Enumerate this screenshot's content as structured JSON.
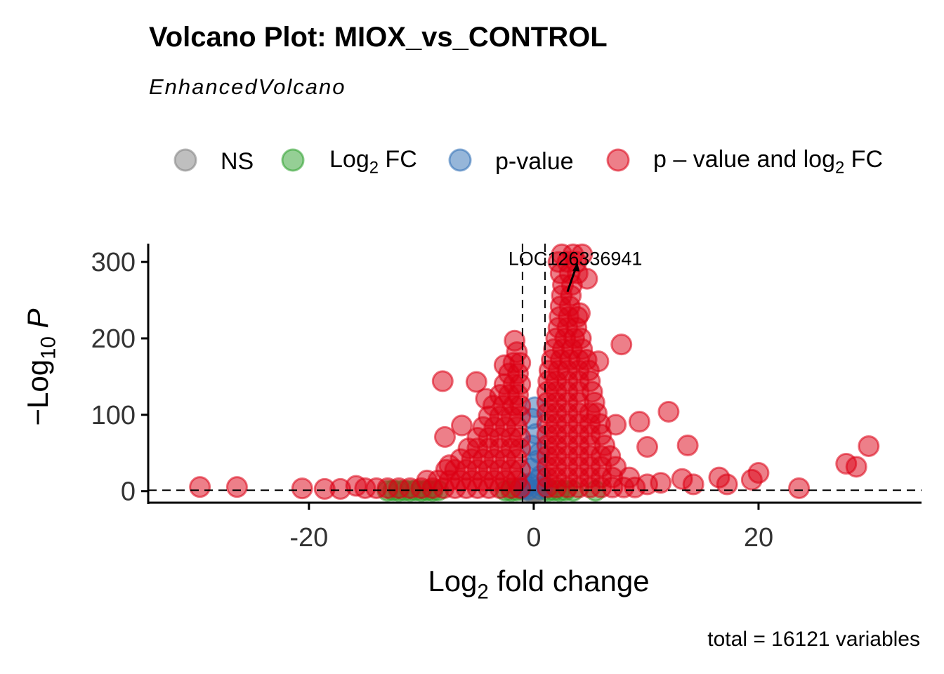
{
  "chart_data": {
    "type": "scatter",
    "title": "Volcano Plot: MIOX_vs_CONTROL",
    "subtitle": "EnhancedVolcano",
    "xlabel": {
      "main": "Log",
      "sub": "2",
      "rest": " fold change"
    },
    "ylabel": {
      "main": "−Log",
      "sub": "10",
      "rest": " P"
    },
    "caption": "total = 16121 variables",
    "xlim": [
      -34.3,
      34.5
    ],
    "ylim": [
      -15,
      324
    ],
    "x_ticks": [
      -20,
      0,
      20
    ],
    "y_ticks": [
      0,
      100,
      200,
      300
    ],
    "fc_cutoff": [
      -1,
      1
    ],
    "p_cutoff_neglog10": 1.3,
    "grid": false,
    "legend_position": "top",
    "legend": [
      {
        "key": "ns",
        "label": "NS",
        "color": "#808080"
      },
      {
        "key": "fc",
        "label_main": "Log",
        "label_sub": "2",
        "label_rest": " FC",
        "color": "#2CA02C"
      },
      {
        "key": "p",
        "label": "p-value",
        "color": "#2E6DB4"
      },
      {
        "key": "both",
        "label_main": "p – value and log",
        "label_sub": "2",
        "label_rest": " FC",
        "color": "#DC0014"
      }
    ],
    "annotation": {
      "label": "LOC126336941",
      "point": [
        3.0,
        261
      ],
      "label_pos": [
        3.7,
        305
      ]
    },
    "series": {
      "ns": [
        [
          -0.8,
          0.3
        ],
        [
          -0.4,
          0.6
        ],
        [
          0,
          0.2
        ],
        [
          0.4,
          0.8
        ],
        [
          0.8,
          0.4
        ],
        [
          -0.2,
          1
        ],
        [
          0.2,
          0.1
        ],
        [
          0,
          -3
        ]
      ],
      "fc": [
        [
          -13,
          0.6
        ],
        [
          -12.5,
          0.9
        ],
        [
          -12,
          0.4
        ],
        [
          -11.5,
          0.8
        ],
        [
          -11,
          0.5
        ],
        [
          -10.5,
          1
        ],
        [
          -10,
          0.3
        ],
        [
          -9.5,
          0.8
        ],
        [
          -9,
          0.5
        ],
        [
          -8.5,
          0.9
        ],
        [
          -2.5,
          0.7
        ],
        [
          -2,
          0.4
        ],
        [
          -1.5,
          0.9
        ],
        [
          1.3,
          0.5
        ],
        [
          1.8,
          0.9
        ],
        [
          2.3,
          0.4
        ],
        [
          2.8,
          0.8
        ],
        [
          3.5,
          0.5
        ],
        [
          5.5,
          0.6
        ]
      ],
      "p": [
        [
          -0.5,
          2
        ],
        [
          0.5,
          3
        ],
        [
          -0.4,
          10
        ],
        [
          0.4,
          15
        ],
        [
          -0.3,
          30
        ],
        [
          0.3,
          40
        ],
        [
          -0.2,
          60
        ],
        [
          0.2,
          75
        ],
        [
          -0.15,
          95
        ],
        [
          0.6,
          20
        ],
        [
          -0.7,
          8
        ],
        [
          0.1,
          110
        ],
        [
          -0.8,
          4
        ],
        [
          0.8,
          6
        ],
        [
          0.5,
          50
        ]
      ],
      "both": [
        [
          1.2,
          5
        ],
        [
          2,
          5
        ],
        [
          3,
          5
        ],
        [
          4,
          5
        ],
        [
          5,
          5
        ],
        [
          6,
          5
        ],
        [
          7,
          5
        ],
        [
          8,
          5
        ],
        [
          9,
          5
        ],
        [
          1.2,
          18
        ],
        [
          2,
          18
        ],
        [
          3,
          18
        ],
        [
          4,
          18
        ],
        [
          5,
          18
        ],
        [
          6,
          18
        ],
        [
          7,
          18
        ],
        [
          8.5,
          18
        ],
        [
          1.2,
          32
        ],
        [
          2,
          32
        ],
        [
          3,
          32
        ],
        [
          4,
          32
        ],
        [
          5,
          32
        ],
        [
          6,
          32
        ],
        [
          7.3,
          32
        ],
        [
          1.2,
          46
        ],
        [
          2,
          46
        ],
        [
          3,
          46
        ],
        [
          4,
          46
        ],
        [
          5,
          46
        ],
        [
          6,
          46
        ],
        [
          6.8,
          46
        ],
        [
          1.2,
          60
        ],
        [
          2,
          60
        ],
        [
          3,
          60
        ],
        [
          4,
          60
        ],
        [
          5,
          60
        ],
        [
          6.3,
          60
        ],
        [
          1.2,
          74
        ],
        [
          2,
          74
        ],
        [
          3,
          74
        ],
        [
          4,
          74
        ],
        [
          5,
          74
        ],
        [
          6,
          74
        ],
        [
          1.2,
          88
        ],
        [
          2,
          88
        ],
        [
          3,
          88
        ],
        [
          4,
          88
        ],
        [
          5,
          88
        ],
        [
          5.9,
          88
        ],
        [
          1.2,
          102
        ],
        [
          2,
          102
        ],
        [
          3,
          102
        ],
        [
          4,
          102
        ],
        [
          5,
          102
        ],
        [
          5.6,
          102
        ],
        [
          1.2,
          116
        ],
        [
          2,
          116
        ],
        [
          3,
          116
        ],
        [
          4,
          116
        ],
        [
          5.4,
          116
        ],
        [
          1.2,
          130
        ],
        [
          2,
          130
        ],
        [
          3,
          130
        ],
        [
          4,
          130
        ],
        [
          5.2,
          130
        ],
        [
          1.3,
          144
        ],
        [
          2,
          144
        ],
        [
          3,
          144
        ],
        [
          4,
          144
        ],
        [
          5,
          144
        ],
        [
          1.4,
          158
        ],
        [
          2.2,
          158
        ],
        [
          3,
          158
        ],
        [
          4,
          158
        ],
        [
          4.9,
          158
        ],
        [
          1.6,
          172
        ],
        [
          2.4,
          172
        ],
        [
          3.2,
          172
        ],
        [
          4,
          172
        ],
        [
          4.7,
          172
        ],
        [
          1.8,
          186
        ],
        [
          2.6,
          186
        ],
        [
          3.4,
          186
        ],
        [
          4.3,
          186
        ],
        [
          2,
          200
        ],
        [
          2.8,
          200
        ],
        [
          3.6,
          200
        ],
        [
          4.2,
          200
        ],
        [
          2.2,
          214
        ],
        [
          3,
          214
        ],
        [
          3.8,
          214
        ],
        [
          2.3,
          228
        ],
        [
          3.1,
          228
        ],
        [
          3.9,
          228
        ],
        [
          2.4,
          242
        ],
        [
          3.2,
          242
        ],
        [
          2.5,
          256
        ],
        [
          3.3,
          256
        ],
        [
          2.6,
          270
        ],
        [
          3.4,
          270
        ],
        [
          2.4,
          285
        ],
        [
          3.2,
          285
        ],
        [
          3.9,
          285
        ],
        [
          2.2,
          300
        ],
        [
          3,
          300
        ],
        [
          3.8,
          300
        ],
        [
          2.5,
          310
        ],
        [
          3.5,
          310
        ],
        [
          4.3,
          310
        ],
        [
          -15,
          4
        ],
        [
          -14,
          4
        ],
        [
          -13,
          4
        ],
        [
          -12,
          4
        ],
        [
          -11,
          4
        ],
        [
          -10,
          4
        ],
        [
          -9,
          4
        ],
        [
          -8,
          4
        ],
        [
          -7,
          4
        ],
        [
          -6,
          4
        ],
        [
          -5,
          4
        ],
        [
          -4,
          4
        ],
        [
          -3,
          4
        ],
        [
          -2,
          4
        ],
        [
          -1.2,
          4
        ],
        [
          -9.5,
          14
        ],
        [
          -8.5,
          14
        ],
        [
          -7.5,
          14
        ],
        [
          -6.5,
          14
        ],
        [
          -5.5,
          14
        ],
        [
          -4.5,
          14
        ],
        [
          -3.5,
          14
        ],
        [
          -2.5,
          14
        ],
        [
          -1.5,
          14
        ],
        [
          -7.8,
          28
        ],
        [
          -7,
          28
        ],
        [
          -6,
          28
        ],
        [
          -5,
          28
        ],
        [
          -4,
          28
        ],
        [
          -3,
          28
        ],
        [
          -2,
          28
        ],
        [
          -1.2,
          28
        ],
        [
          -6.5,
          42
        ],
        [
          -5.5,
          42
        ],
        [
          -4.5,
          42
        ],
        [
          -3.5,
          42
        ],
        [
          -2.5,
          42
        ],
        [
          -1.5,
          42
        ],
        [
          -5.8,
          56
        ],
        [
          -5,
          56
        ],
        [
          -4,
          56
        ],
        [
          -3,
          56
        ],
        [
          -2,
          56
        ],
        [
          -1.2,
          56
        ],
        [
          -5,
          70
        ],
        [
          -4,
          70
        ],
        [
          -3,
          70
        ],
        [
          -2,
          70
        ],
        [
          -1.2,
          70
        ],
        [
          -4.5,
          84
        ],
        [
          -3.5,
          84
        ],
        [
          -2.5,
          84
        ],
        [
          -1.5,
          84
        ],
        [
          -4,
          98
        ],
        [
          -3,
          98
        ],
        [
          -2,
          98
        ],
        [
          -1.2,
          98
        ],
        [
          -3.6,
          112
        ],
        [
          -2.7,
          112
        ],
        [
          -1.8,
          112
        ],
        [
          -1.2,
          112
        ],
        [
          -3,
          126
        ],
        [
          -2.2,
          126
        ],
        [
          -1.4,
          126
        ],
        [
          -2.6,
          140
        ],
        [
          -1.8,
          140
        ],
        [
          -1.2,
          140
        ],
        [
          -2.2,
          154
        ],
        [
          -1.4,
          154
        ],
        [
          -1.8,
          168
        ],
        [
          -1.2,
          168
        ],
        [
          -1.5,
          182
        ],
        [
          -29.7,
          5.5
        ],
        [
          -26.4,
          5.5
        ],
        [
          -20.6,
          3.7
        ],
        [
          -18.6,
          3
        ],
        [
          -17.2,
          3
        ],
        [
          -15.8,
          7
        ],
        [
          -8.1,
          144
        ],
        [
          -5.1,
          143
        ],
        [
          -4.25,
          121
        ],
        [
          -6.4,
          86
        ],
        [
          -7.9,
          71
        ],
        [
          -7.5,
          34
        ],
        [
          -2.6,
          165
        ],
        [
          -1.7,
          197
        ],
        [
          7.8,
          192
        ],
        [
          4.75,
          278
        ],
        [
          4.1,
          233
        ],
        [
          5.75,
          170
        ],
        [
          7.3,
          87
        ],
        [
          9.4,
          91
        ],
        [
          12,
          104
        ],
        [
          10.1,
          58
        ],
        [
          13.7,
          60
        ],
        [
          13.2,
          16
        ],
        [
          14.2,
          9
        ],
        [
          16.5,
          18
        ],
        [
          17.2,
          9
        ],
        [
          20,
          24
        ],
        [
          19.4,
          15
        ],
        [
          23.6,
          4
        ],
        [
          27.8,
          36
        ],
        [
          28.7,
          32
        ],
        [
          29.8,
          59
        ],
        [
          11.3,
          11
        ],
        [
          10.1,
          9
        ]
      ]
    }
  }
}
